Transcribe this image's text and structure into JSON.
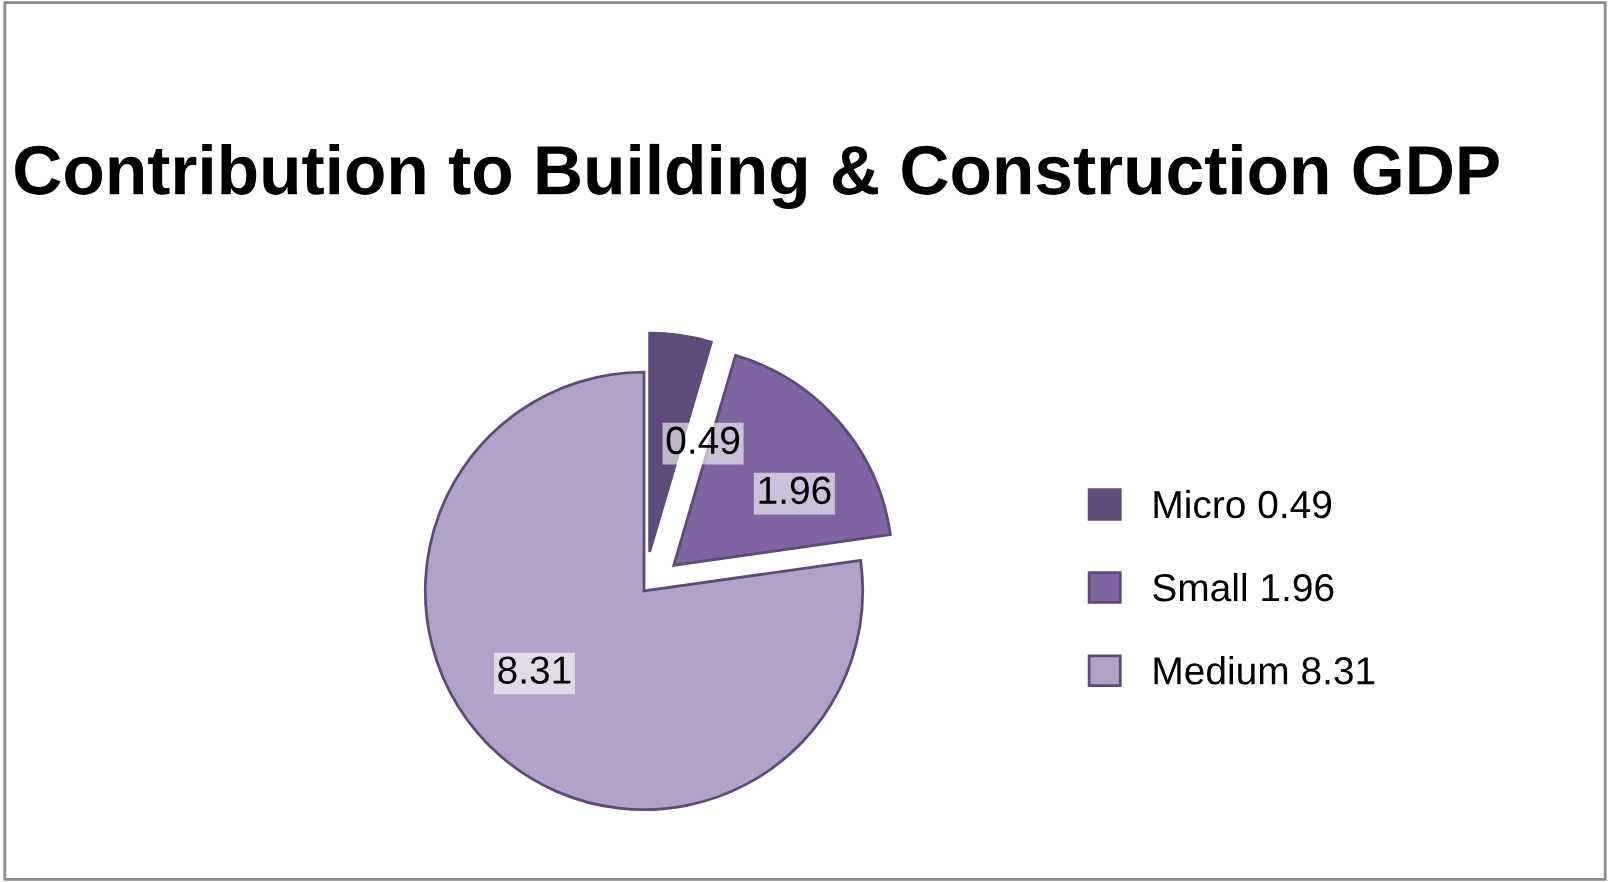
{
  "chart_data": {
    "type": "pie",
    "title": "Contribution to Building & Construction GDP",
    "categories": [
      "Micro 0.49",
      "Small 1.96",
      "Medium 8.31"
    ],
    "values": [
      0.49,
      1.96,
      8.31
    ],
    "colors": [
      "#604a7b",
      "#8064a2",
      "#b3a2c7"
    ],
    "data_labels": true,
    "legend": "right"
  }
}
